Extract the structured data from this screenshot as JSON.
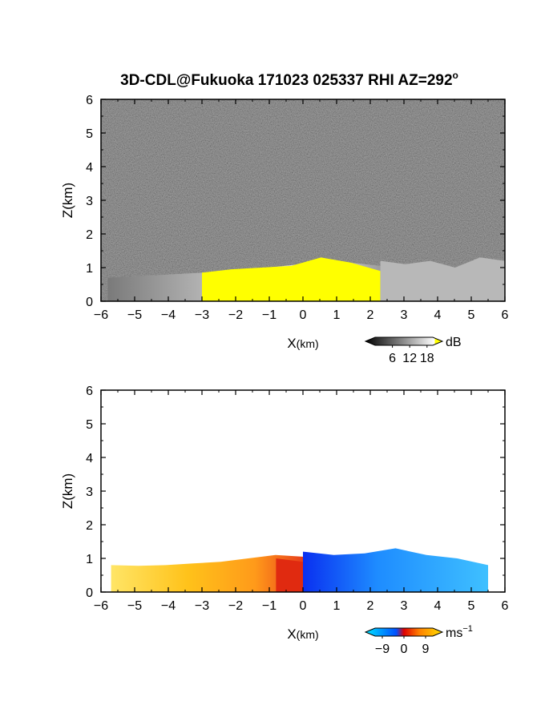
{
  "title": "3D-CDL@Fukuoka 171023 025337 RHI AZ=292",
  "title_degree": "o",
  "chart_data": [
    {
      "type": "heatmap",
      "panel": "top",
      "quantity": "backscatter",
      "xlabel_main": "X",
      "xlabel_unit": "(km)",
      "ylabel": "Z(km)",
      "xlim": [
        -6,
        6
      ],
      "ylim": [
        0,
        6
      ],
      "xticks": [
        -6,
        -5,
        -4,
        -3,
        -2,
        -1,
        0,
        1,
        2,
        3,
        4,
        5,
        6
      ],
      "yticks": [
        0,
        1,
        2,
        3,
        4,
        5,
        6
      ],
      "background_level": "noise",
      "colorbar": {
        "unit": "dB",
        "tick_labels": [
          "6",
          "12",
          "18"
        ],
        "tick_values": [
          6,
          12,
          18
        ],
        "range": [
          0,
          20
        ],
        "colors": [
          "#000000",
          "#ffffff",
          "#ffff00"
        ]
      },
      "regions": [
        {
          "x": [
            -5.8,
            2.8
          ],
          "top_km": [
            0.7,
            0.75,
            0.8,
            0.85,
            0.9,
            1.0,
            1.1,
            1.2,
            1.1,
            1.0
          ],
          "level": "grey"
        },
        {
          "x": [
            -3.0,
            2.3
          ],
          "top_km": [
            0.85,
            0.95,
            1.0,
            1.05,
            1.3,
            1.15,
            0.9
          ],
          "level": "yellow"
        },
        {
          "x": [
            2.3,
            6.0
          ],
          "top_km": [
            1.2,
            1.1,
            1.2,
            1.0,
            1.3,
            1.2
          ],
          "level": "light-grey"
        }
      ]
    },
    {
      "type": "heatmap",
      "panel": "bottom",
      "quantity": "doppler velocity",
      "xlabel_main": "X",
      "xlabel_unit": "(km)",
      "ylabel": "Z(km)",
      "xlim": [
        -6,
        6
      ],
      "ylim": [
        0,
        6
      ],
      "xticks": [
        -6,
        -5,
        -4,
        -3,
        -2,
        -1,
        0,
        1,
        2,
        3,
        4,
        5,
        6
      ],
      "yticks": [
        0,
        1,
        2,
        3,
        4,
        5,
        6
      ],
      "colorbar": {
        "unit": "ms",
        "unit_exponent": "−1",
        "tick_labels": [
          "−9",
          "0",
          "9"
        ],
        "tick_values": [
          -9,
          0,
          9
        ],
        "range": [
          -12,
          12
        ],
        "colors": [
          "#00e5ff",
          "#0050ff",
          "#e00000",
          "#ff8000",
          "#ffe000"
        ]
      },
      "regions": [
        {
          "x": [
            -5.7,
            0.0
          ],
          "top_km": [
            0.8,
            0.78,
            0.8,
            0.85,
            0.9,
            1.0,
            1.1,
            1.05
          ],
          "velocity_ms": 7
        },
        {
          "x": [
            -0.8,
            0.0
          ],
          "top_km": [
            1.0,
            0.9
          ],
          "velocity_ms": 1
        },
        {
          "x": [
            0.0,
            5.5
          ],
          "top_km": [
            1.2,
            1.1,
            1.15,
            1.3,
            1.1,
            1.0,
            0.8
          ],
          "velocity_ms": -6
        }
      ]
    }
  ]
}
